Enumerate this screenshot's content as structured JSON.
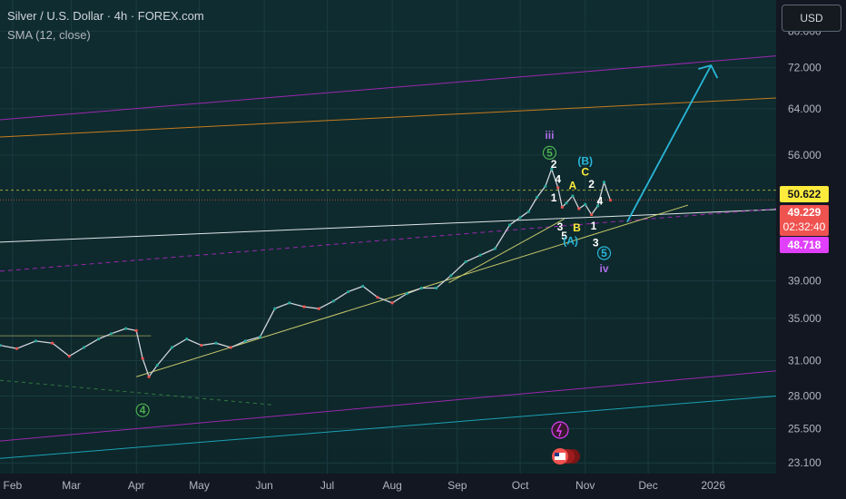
{
  "header": {
    "title": "Silver / U.S. Dollar · 4h · FOREX.com",
    "indicator": "SMA (12, close)",
    "currency_button": "USD"
  },
  "colors": {
    "background": "#0e2a2e",
    "price_line": "#d1d4dc",
    "bull_candle": "#26a69a",
    "bear_candle": "#ef5350",
    "channel_purple": "#9c27b0",
    "channel_orange": "#c77c1e",
    "channel_teal": "#1ba1b5",
    "trendline_yellow": "#c8c86a",
    "forecast_arrow": "#29b6d8",
    "wave_iii_iv_label": "#ae6ce6",
    "wave_5_label": "#4caf50",
    "wave_abc_label": "#ffeb3b",
    "wave_B_label": "#29b6d8"
  },
  "price_tags": {
    "yellow": "50.622",
    "red": "49.229",
    "countdown": "02:32:40",
    "magenta": "48.718"
  },
  "chart_data": {
    "type": "line",
    "symbol": "Silver / U.S. Dollar",
    "interval": "4h",
    "y_scale": "log",
    "ylim": [
      22.4,
      87.5
    ],
    "xlim": [
      "2025-01-26",
      "2026-01-31"
    ],
    "y_ticks": [
      "80.000",
      "72.000",
      "64.000",
      "56.000",
      "39.000",
      "35.000",
      "31.000",
      "28.000",
      "25.500",
      "23.100"
    ],
    "x_ticks": [
      {
        "label": "Feb",
        "date": "2025-02-01"
      },
      {
        "label": "Mar",
        "date": "2025-03-01"
      },
      {
        "label": "Apr",
        "date": "2025-04-01"
      },
      {
        "label": "May",
        "date": "2025-05-01"
      },
      {
        "label": "Jun",
        "date": "2025-06-01"
      },
      {
        "label": "Jul",
        "date": "2025-07-01"
      },
      {
        "label": "Aug",
        "date": "2025-08-01"
      },
      {
        "label": "Sep",
        "date": "2025-09-01"
      },
      {
        "label": "Oct",
        "date": "2025-10-01"
      },
      {
        "label": "Nov",
        "date": "2025-11-01"
      },
      {
        "label": "Dec",
        "date": "2025-12-01"
      },
      {
        "label": "2026",
        "date": "2026-01-01"
      }
    ],
    "series": [
      {
        "x": [
          "2025-01-26",
          "2025-02-03",
          "2025-02-12",
          "2025-02-20",
          "2025-02-28",
          "2025-03-07",
          "2025-03-14",
          "2025-03-20",
          "2025-03-27",
          "2025-04-01",
          "2025-04-04",
          "2025-04-07",
          "2025-04-11",
          "2025-04-18",
          "2025-04-25",
          "2025-05-02",
          "2025-05-09",
          "2025-05-16",
          "2025-05-23",
          "2025-05-30",
          "2025-06-06",
          "2025-06-13",
          "2025-06-20",
          "2025-06-27",
          "2025-07-04",
          "2025-07-11",
          "2025-07-18",
          "2025-07-25",
          "2025-08-01",
          "2025-08-08",
          "2025-08-15",
          "2025-08-22",
          "2025-08-29",
          "2025-09-05",
          "2025-09-12",
          "2025-09-19",
          "2025-09-26",
          "2025-10-01",
          "2025-10-05",
          "2025-10-09",
          "2025-10-13",
          "2025-10-16",
          "2025-10-19",
          "2025-10-21",
          "2025-10-23",
          "2025-10-26",
          "2025-10-29",
          "2025-11-01",
          "2025-11-04",
          "2025-11-07",
          "2025-11-10",
          "2025-11-13"
        ],
        "y": [
          32.4,
          32.1,
          32.8,
          32.6,
          31.4,
          32.2,
          33.0,
          33.5,
          34.0,
          33.8,
          31.2,
          29.6,
          30.6,
          32.2,
          33.0,
          32.4,
          32.6,
          32.2,
          32.8,
          33.2,
          36.0,
          36.6,
          36.2,
          36.0,
          36.8,
          37.8,
          38.4,
          37.2,
          36.6,
          37.6,
          38.2,
          38.2,
          39.6,
          41.2,
          42.0,
          42.8,
          45.8,
          46.8,
          47.6,
          49.6,
          51.2,
          53.8,
          51.0,
          48.2,
          48.8,
          49.8,
          48.0,
          48.6,
          47.2,
          48.4,
          51.8,
          49.2
        ]
      }
    ],
    "annotations": [
      {
        "text": "iii",
        "date": "2025-10-15",
        "price": 58.7
      },
      {
        "text": "5",
        "date": "2025-10-15",
        "price": 55.8,
        "circled": true
      },
      {
        "text": "2",
        "date": "2025-10-17",
        "price": 54.0
      },
      {
        "text": "4",
        "date": "2025-10-19",
        "price": 51.7
      },
      {
        "text": "1",
        "date": "2025-10-17",
        "price": 49.0
      },
      {
        "text": "3",
        "date": "2025-10-20",
        "price": 45.1
      },
      {
        "text": "5",
        "date": "2025-10-22",
        "price": 43.9
      },
      {
        "text": "A",
        "date": "2025-10-26",
        "price": 50.8
      },
      {
        "text": "B",
        "date": "2025-10-28",
        "price": 45.0
      },
      {
        "text": "(B)",
        "date": "2025-11-01",
        "price": 54.5
      },
      {
        "text": "C",
        "date": "2025-11-01",
        "price": 52.8
      },
      {
        "text": "2",
        "date": "2025-11-04",
        "price": 51.0
      },
      {
        "text": "4",
        "date": "2025-11-08",
        "price": 48.6
      },
      {
        "text": "1",
        "date": "2025-11-05",
        "price": 45.2
      },
      {
        "text": "(A)",
        "date": "2025-10-25",
        "price": 43.3
      },
      {
        "text": "3",
        "date": "2025-11-06",
        "price": 43.1
      },
      {
        "text": "5",
        "date": "2025-11-10",
        "price": 41.8,
        "circled": true
      },
      {
        "text": "iv",
        "date": "2025-11-10",
        "price": 40.0
      },
      {
        "text": "4",
        "date": "2025-04-04",
        "price": 26.6,
        "circled": true
      }
    ]
  }
}
